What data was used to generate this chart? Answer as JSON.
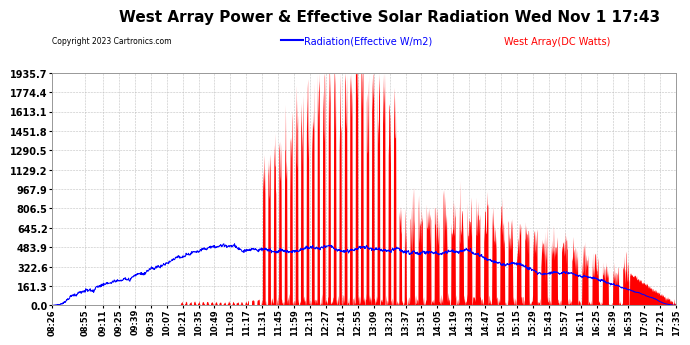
{
  "title": "West Array Power & Effective Solar Radiation Wed Nov 1 17:43",
  "copyright": "Copyright 2023 Cartronics.com",
  "legend_radiation": "Radiation(Effective W/m2)",
  "legend_west": "West Array(DC Watts)",
  "radiation_color": "blue",
  "west_color": "red",
  "y_ticks": [
    0.0,
    161.3,
    322.6,
    483.9,
    645.2,
    806.5,
    967.9,
    1129.2,
    1290.5,
    1451.8,
    1613.1,
    1774.4,
    1935.7
  ],
  "ylim": [
    0,
    1935.7
  ],
  "background_color": "#ffffff",
  "grid_color": "#bbbbbb",
  "title_color": "#000000",
  "title_fontsize": 11,
  "xlabel_fontsize": 6,
  "ylabel_fontsize": 7,
  "x_labels": [
    "08:26",
    "08:55",
    "09:11",
    "09:25",
    "09:39",
    "09:53",
    "10:07",
    "10:21",
    "10:35",
    "10:49",
    "11:03",
    "11:17",
    "11:31",
    "11:45",
    "11:59",
    "12:13",
    "12:27",
    "12:41",
    "12:55",
    "13:09",
    "13:23",
    "13:37",
    "13:51",
    "14:05",
    "14:19",
    "14:33",
    "14:47",
    "15:01",
    "15:15",
    "15:29",
    "15:43",
    "15:57",
    "16:11",
    "16:25",
    "16:39",
    "16:53",
    "17:07",
    "17:21",
    "17:35"
  ]
}
